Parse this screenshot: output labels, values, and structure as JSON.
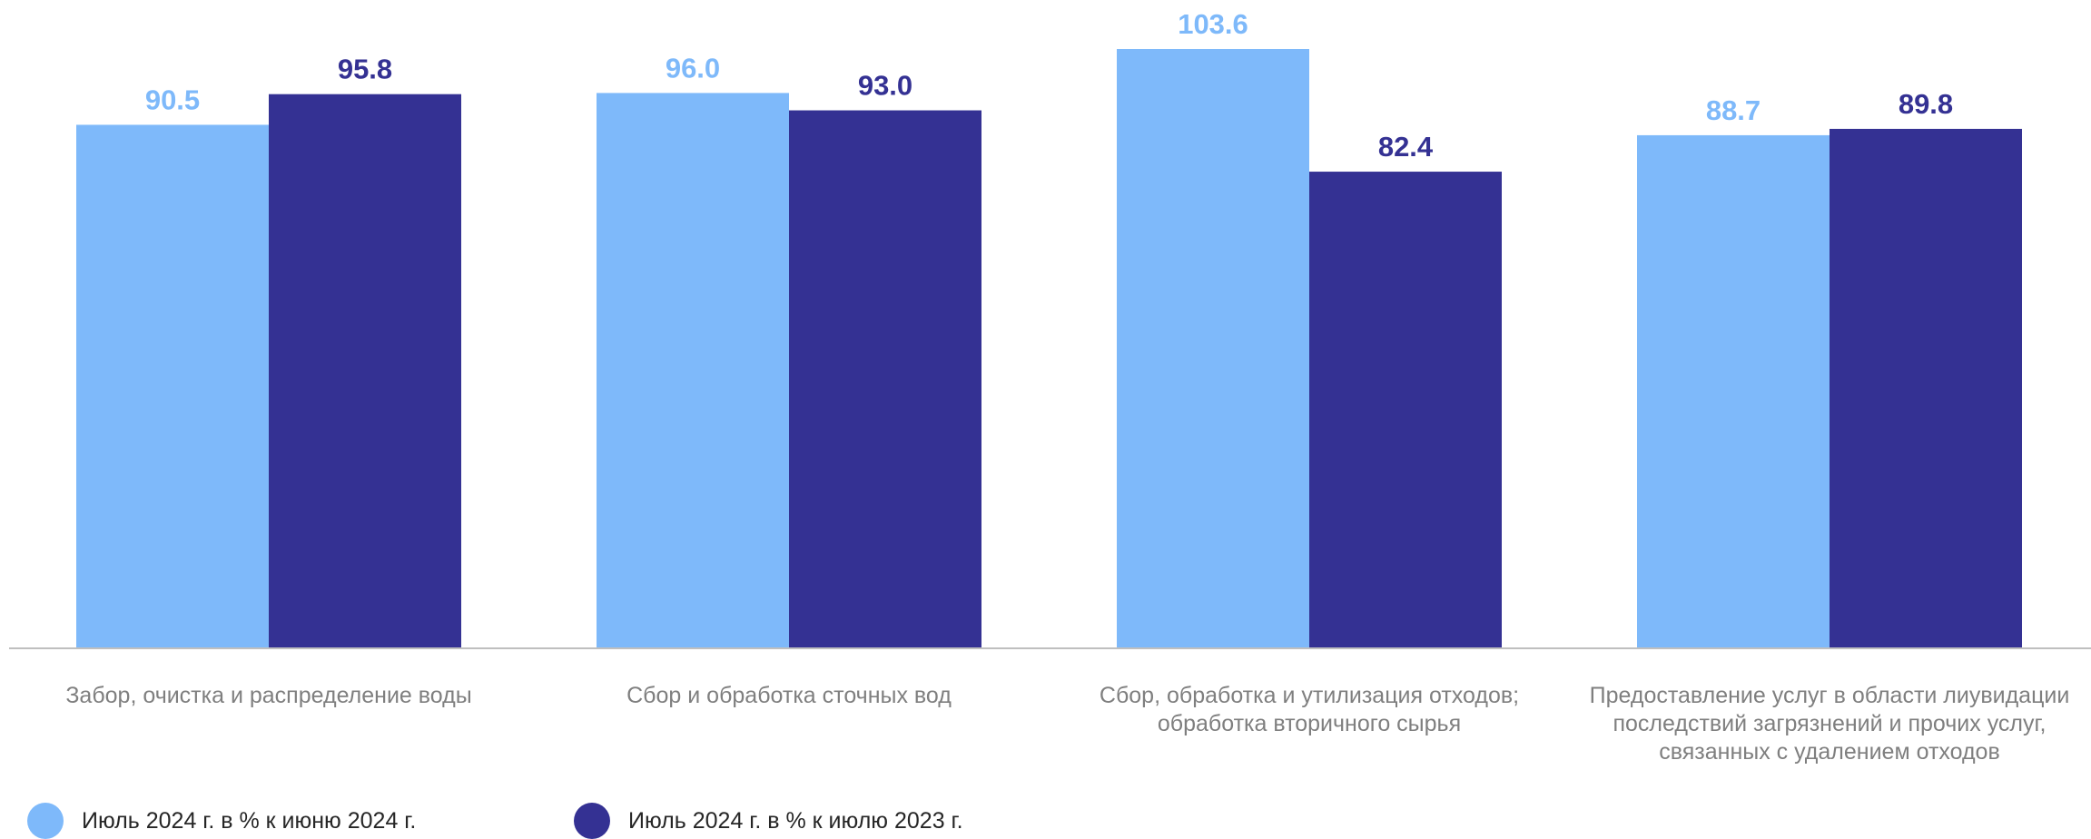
{
  "chart_data": {
    "type": "bar",
    "categories": [
      [
        "Забор, очистка и распределение воды"
      ],
      [
        "Сбор и обработка сточных вод"
      ],
      [
        "Сбор, обработка и утилизация отходов;",
        "обработка вторичного сырья"
      ],
      [
        "Предоставление услуг в области лиувидации",
        "последствий загрязнений и прочих услуг,",
        "связанных с удалением отходов"
      ]
    ],
    "series": [
      {
        "name": "Июль 2024 г. в % к июню 2024 г.",
        "color": "#7eb9fa",
        "values": [
          90.5,
          96.0,
          103.6,
          88.7
        ]
      },
      {
        "name": "Июль 2024 г. в % к июлю 2023 г.",
        "color": "#343193",
        "values": [
          95.8,
          93.0,
          82.4,
          89.8
        ]
      }
    ],
    "title": "",
    "xlabel": "",
    "ylabel": "",
    "ylim": [
      0,
      103.6
    ],
    "grid": false,
    "data_labels": true,
    "legend": "bottom-left"
  }
}
